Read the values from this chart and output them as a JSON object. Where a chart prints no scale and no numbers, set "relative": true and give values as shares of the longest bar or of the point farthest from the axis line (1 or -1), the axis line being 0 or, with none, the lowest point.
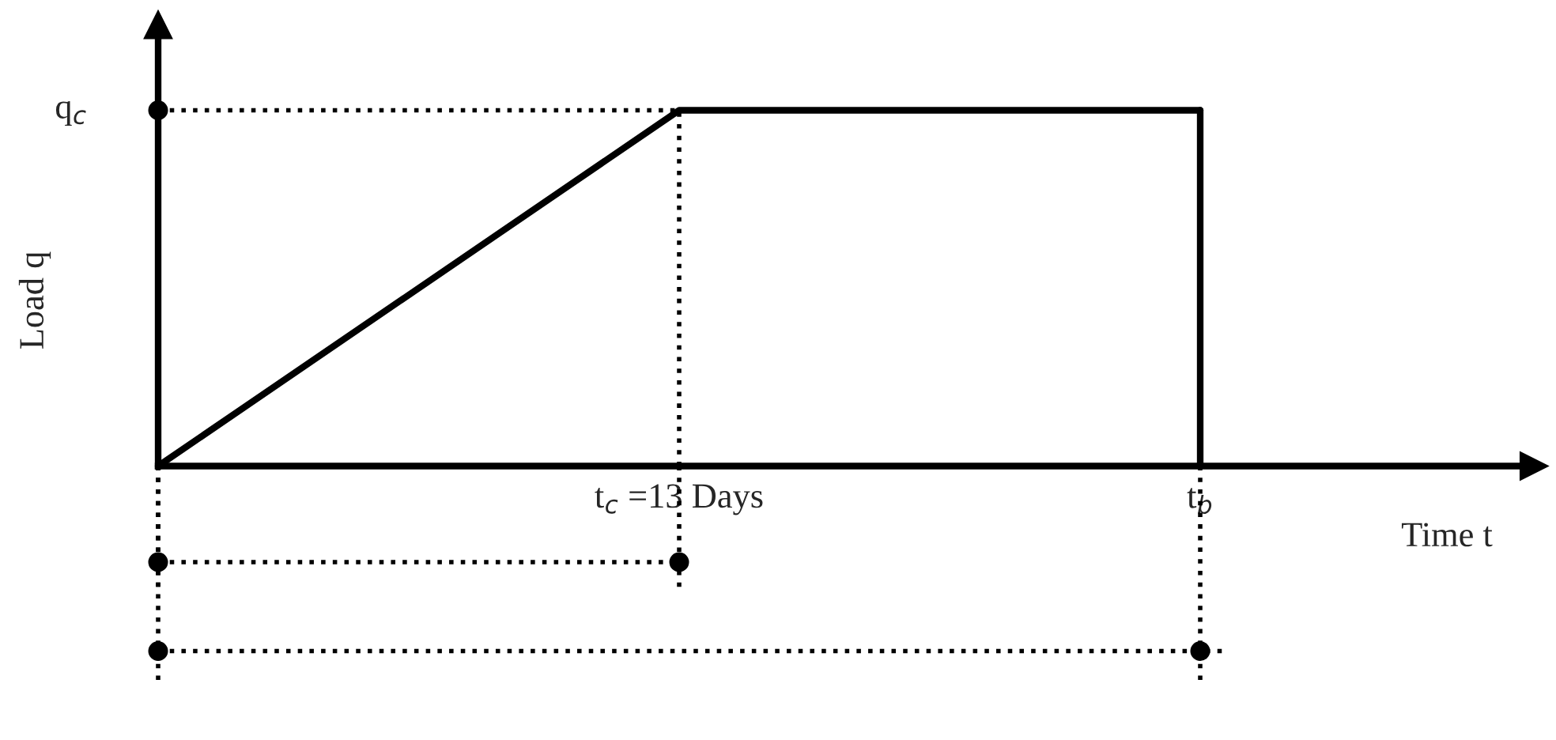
{
  "chart_data": {
    "type": "line",
    "relative": true,
    "xlabel": "Time t",
    "ylabel": "Load q",
    "categories": [
      null,
      "t$_{c}$ =13 Days",
      "t$_{b}$"
    ],
    "series": [
      {
        "color": "#000000",
        "values": [
          0,
          1,
          1
        ]
      }
    ],
    "ref_lines": [
      {
        "axis": "y",
        "value": 1,
        "label": "q$_{c}$",
        "line_style": "dotted"
      },
      {
        "axis": "x",
        "value": "t$_{c}$ =13 Days",
        "line_style": "dotted"
      },
      {
        "axis": "x",
        "value": "t$_{b}$",
        "line_style": "solid"
      }
    ],
    "marker": "none",
    "line_style": "solid"
  }
}
